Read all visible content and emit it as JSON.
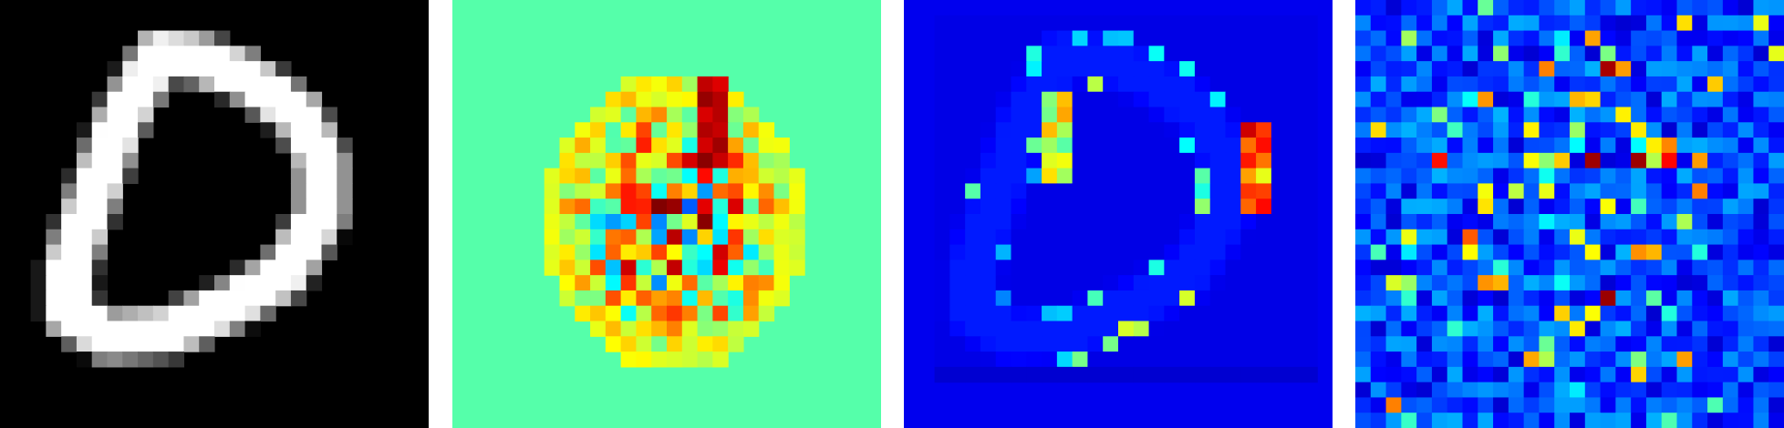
{
  "figure": {
    "grid_size": 28,
    "panels": [
      {
        "id": "input-digit",
        "colormap": "gray",
        "background": "#000000"
      },
      {
        "id": "signed-attribution",
        "colormap": "jet",
        "background": "#55ffaa"
      },
      {
        "id": "positive-attribution",
        "colormap": "jet",
        "background": "#0000ee"
      },
      {
        "id": "noisy-attribution",
        "colormap": "jet",
        "background": "#0000c8"
      }
    ]
  }
}
